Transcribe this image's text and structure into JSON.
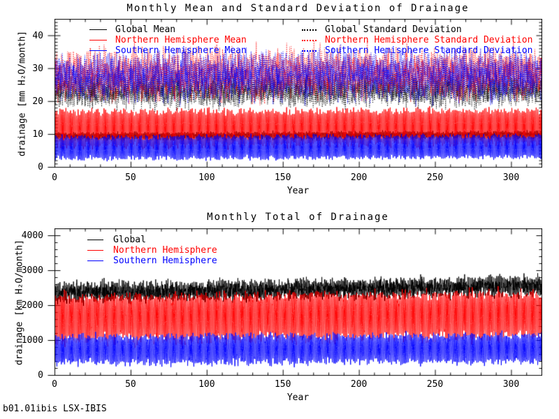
{
  "page": {
    "background": "#ffffff",
    "footer": "b01.01ibis LSX-IBIS"
  },
  "colors": {
    "global": "#000000",
    "northern_hemisphere": "#ff0000",
    "southern_hemisphere": "#0000ff",
    "axis": "#000000"
  },
  "chart_data": [
    {
      "type": "line",
      "title": "Monthly Mean and Standard Deviation of Drainage",
      "xlabel": "Year",
      "ylabel": "drainage [mm H₂O/month]",
      "xlim": [
        0,
        320
      ],
      "ylim": [
        0,
        45
      ],
      "xticks": [
        0,
        50,
        100,
        150,
        200,
        250,
        300
      ],
      "yticks": [
        0,
        10,
        20,
        30,
        40
      ],
      "x_minor_step": 10,
      "y_minor_step": 1,
      "grid": false,
      "legend_position": "inside-top, two columns",
      "sampling": "monthly values over 320 years",
      "series": [
        {
          "name": "Global Mean",
          "color": "#000000",
          "linestyle": "solid",
          "phase": "none",
          "base": 9.3,
          "trend_end": 9.8,
          "seasonal_amplitude": 0.9,
          "seasonal_variability": 0.15,
          "noise": 0.9,
          "trough_factor": 1.0,
          "approx_range": [
            7.5,
            11.5
          ]
        },
        {
          "name": "Northern Hemisphere Mean",
          "color": "#ff0000",
          "linestyle": "solid",
          "phase": "northern",
          "base": 11.8,
          "trend_end": 12.4,
          "seasonal_amplitude": 5.0,
          "seasonal_variability": 0.2,
          "noise": 0.8,
          "trough_factor": 1.05,
          "approx_range": [
            5.0,
            19.5
          ]
        },
        {
          "name": "Southern Hemisphere Mean",
          "color": "#0000ff",
          "linestyle": "solid",
          "phase": "southern",
          "base": 5.9,
          "trend_end": 6.3,
          "seasonal_amplitude": 3.2,
          "seasonal_variability": 0.2,
          "noise": 0.6,
          "trough_factor": 1.0,
          "approx_range": [
            1.8,
            10.0
          ]
        },
        {
          "name": "Global Standard Deviation",
          "color": "#000000",
          "linestyle": "dotted",
          "phase": "northern",
          "base": 23.0,
          "trend_end": 23.8,
          "seasonal_amplitude": 1.5,
          "seasonal_variability": 0.2,
          "noise": 5.0,
          "trough_factor": 1.0,
          "approx_range": [
            17,
            30
          ]
        },
        {
          "name": "Northern Hemisphere Standard Deviation",
          "color": "#ff0000",
          "linestyle": "dotted",
          "phase": "northern",
          "base": 28.0,
          "trend_end": 28.8,
          "seasonal_amplitude": 3.2,
          "seasonal_variability": 0.25,
          "noise": 6.5,
          "trough_factor": 1.0,
          "approx_range": [
            18,
            39
          ]
        },
        {
          "name": "Southern Hemisphere Standard Deviation",
          "color": "#0000ff",
          "linestyle": "dotted",
          "phase": "southern",
          "base": 27.5,
          "trend_end": 28.0,
          "seasonal_amplitude": 3.0,
          "seasonal_variability": 0.25,
          "noise": 6.5,
          "trough_factor": 1.0,
          "approx_range": [
            18,
            38
          ]
        }
      ]
    },
    {
      "type": "line",
      "title": "Monthly Total of Drainage",
      "xlabel": "Year",
      "ylabel": "drainage [km H₂O/month]",
      "xlim": [
        0,
        320
      ],
      "ylim": [
        0,
        4200
      ],
      "xticks": [
        0,
        50,
        100,
        150,
        200,
        250,
        300
      ],
      "yticks": [
        0,
        1000,
        2000,
        3000,
        4000
      ],
      "x_minor_step": 10,
      "y_minor_step": 200,
      "grid": false,
      "legend_position": "inside-top-left",
      "sampling": "monthly values over 320 years",
      "series": [
        {
          "name": "Global",
          "color": "#000000",
          "linestyle": "solid",
          "phase": "northern",
          "base": 2380,
          "trend_end": 2560,
          "seasonal_amplitude": 130,
          "seasonal_variability": 0.2,
          "noise": 270,
          "trough_factor": 1.0,
          "approx_range": [
            2000,
            3000
          ]
        },
        {
          "name": "Northern Hemisphere",
          "color": "#ff0000",
          "linestyle": "solid",
          "phase": "northern",
          "base": 1700,
          "trend_end": 1800,
          "seasonal_amplitude": 520,
          "seasonal_variability": 0.18,
          "noise": 190,
          "trough_factor": 1.3,
          "approx_range": [
            700,
            2500
          ]
        },
        {
          "name": "Southern Hemisphere",
          "color": "#0000ff",
          "linestyle": "solid",
          "phase": "southern",
          "base": 760,
          "trend_end": 800,
          "seasonal_amplitude": 340,
          "seasonal_variability": 0.18,
          "noise": 130,
          "trough_factor": 1.15,
          "approx_range": [
            280,
            1250
          ]
        }
      ]
    }
  ]
}
